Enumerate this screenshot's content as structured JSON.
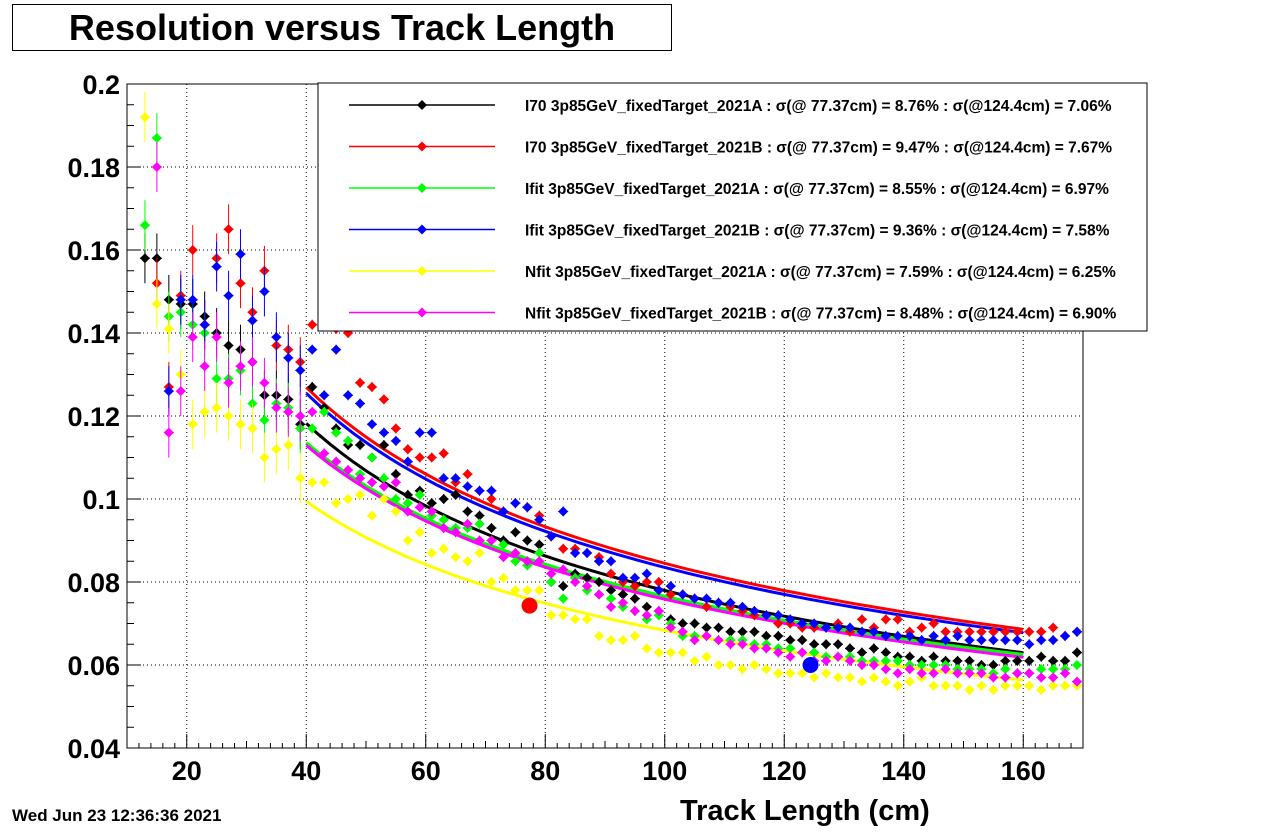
{
  "title": "Resolution versus Track Length",
  "timestamp": "Wed Jun 23 12:36:36 2021",
  "chart_data": {
    "type": "scatter",
    "title": "Resolution versus Track Length",
    "xlabel": "Track Length (cm)",
    "ylabel": "",
    "xlim": [
      10,
      170
    ],
    "ylim": [
      0.04,
      0.2
    ],
    "xticks": [
      20,
      40,
      60,
      80,
      100,
      120,
      140,
      160
    ],
    "yticks": [
      0.04,
      0.06,
      0.08,
      0.1,
      0.12,
      0.14,
      0.16,
      0.18,
      0.2
    ],
    "xtick_labels": [
      "20",
      "40",
      "60",
      "80",
      "100",
      "120",
      "140",
      "160"
    ],
    "ytick_labels": [
      "0.04",
      "0.06",
      "0.08",
      "0.1",
      "0.12",
      "0.14",
      "0.16",
      "0.18",
      "0.2"
    ],
    "grid": true,
    "legend_position": "top-right",
    "series": [
      {
        "name": "I70  3p85GeV_fixedTarget_2021A",
        "legend": "I70  3p85GeV_fixedTarget_2021A : σ(@ 77.37cm) =  8.76% : σ(@124.4cm) =  7.06%",
        "color": "#000000",
        "fit_a": 0.00977,
        "fit_b": 0.7,
        "x": [
          13,
          15,
          17,
          19,
          21,
          23,
          25,
          27,
          29,
          31,
          33,
          35,
          37,
          39,
          41,
          43,
          45,
          47,
          49,
          51,
          53,
          55,
          57,
          59,
          61,
          63,
          65,
          67,
          69,
          71,
          73,
          75,
          77,
          79,
          81,
          83,
          85,
          87,
          89,
          91,
          93,
          95,
          97,
          99,
          101,
          103,
          105,
          107,
          109,
          111,
          113,
          115,
          117,
          119,
          121,
          123,
          125,
          127,
          129,
          131,
          133,
          135,
          137,
          139,
          141,
          143,
          145,
          147,
          149,
          151,
          153,
          155,
          157,
          159,
          161,
          163,
          165,
          167,
          169
        ],
        "y": [
          0.158,
          0.158,
          0.148,
          0.147,
          0.147,
          0.144,
          0.14,
          0.137,
          0.136,
          0.133,
          0.125,
          0.125,
          0.124,
          0.118,
          0.127,
          0.122,
          0.117,
          0.113,
          0.113,
          0.11,
          0.113,
          0.106,
          0.101,
          0.102,
          0.099,
          0.1,
          0.101,
          0.097,
          0.096,
          0.093,
          0.09,
          0.092,
          0.09,
          0.089,
          0.08,
          0.079,
          0.082,
          0.081,
          0.08,
          0.078,
          0.077,
          0.076,
          0.074,
          0.073,
          0.071,
          0.07,
          0.07,
          0.069,
          0.069,
          0.068,
          0.068,
          0.068,
          0.067,
          0.067,
          0.066,
          0.066,
          0.065,
          0.065,
          0.065,
          0.064,
          0.063,
          0.064,
          0.063,
          0.062,
          0.062,
          0.061,
          0.062,
          0.061,
          0.061,
          0.061,
          0.06,
          0.06,
          0.061,
          0.061,
          0.061,
          0.062,
          0.061,
          0.061,
          0.063
        ]
      },
      {
        "name": "I70  3p85GeV_fixedTarget_2021B",
        "legend": "I70  3p85GeV_fixedTarget_2021B : σ(@ 77.37cm) =  9.47% : σ(@124.4cm) =  7.67%",
        "color": "#ff0000",
        "fit_a": 0.0104,
        "fit_b": 0.66,
        "x": [
          15,
          17,
          19,
          21,
          23,
          25,
          27,
          29,
          31,
          33,
          35,
          37,
          39,
          41,
          43,
          45,
          47,
          49,
          51,
          53,
          55,
          57,
          59,
          61,
          63,
          65,
          67,
          69,
          71,
          73,
          75,
          77,
          79,
          81,
          83,
          85,
          87,
          89,
          91,
          93,
          95,
          97,
          99,
          101,
          103,
          105,
          107,
          109,
          111,
          113,
          115,
          117,
          119,
          121,
          123,
          125,
          127,
          129,
          131,
          133,
          135,
          137,
          139,
          141,
          143,
          145,
          147,
          149,
          151,
          153,
          155,
          157,
          159,
          161,
          163,
          165,
          167,
          169
        ],
        "y": [
          0.152,
          0.127,
          0.149,
          0.16,
          0.142,
          0.158,
          0.165,
          0.152,
          0.145,
          0.155,
          0.137,
          0.136,
          0.133,
          0.142,
          0.143,
          0.141,
          0.14,
          0.128,
          0.127,
          0.124,
          0.117,
          0.112,
          0.11,
          0.11,
          0.111,
          0.104,
          0.106,
          0.102,
          0.1,
          0.097,
          0.099,
          0.098,
          0.096,
          0.091,
          0.088,
          0.088,
          0.087,
          0.086,
          0.082,
          0.08,
          0.079,
          0.08,
          0.08,
          0.077,
          0.077,
          0.076,
          0.074,
          0.075,
          0.074,
          0.073,
          0.072,
          0.072,
          0.07,
          0.07,
          0.069,
          0.069,
          0.069,
          0.07,
          0.068,
          0.071,
          0.069,
          0.071,
          0.071,
          0.068,
          0.069,
          0.07,
          0.068,
          0.068,
          0.068,
          0.068,
          0.068,
          0.068,
          0.068,
          0.068,
          0.068,
          0.069,
          0.067,
          0.068
        ]
      },
      {
        "name": "Ifit 3p85GeV_fixedTarget_2021A",
        "legend": "Ifit 3p85GeV_fixedTarget_2021A : σ(@ 77.37cm) =  8.55% : σ(@124.4cm) =  6.97%",
        "color": "#00ff00",
        "fit_a": 0.0086,
        "fit_b": 0.73,
        "x": [
          13,
          15,
          17,
          19,
          21,
          23,
          25,
          27,
          29,
          31,
          33,
          35,
          37,
          39,
          41,
          43,
          45,
          47,
          49,
          51,
          53,
          55,
          57,
          59,
          61,
          63,
          65,
          67,
          69,
          71,
          73,
          75,
          77,
          79,
          81,
          83,
          85,
          87,
          89,
          91,
          93,
          95,
          97,
          99,
          101,
          103,
          105,
          107,
          109,
          111,
          113,
          115,
          117,
          119,
          121,
          123,
          125,
          127,
          129,
          131,
          133,
          135,
          137,
          139,
          141,
          143,
          145,
          147,
          149,
          151,
          153,
          155,
          157,
          159,
          161,
          163,
          165,
          167,
          169
        ],
        "y": [
          0.166,
          0.187,
          0.144,
          0.145,
          0.142,
          0.14,
          0.129,
          0.129,
          0.131,
          0.123,
          0.119,
          0.123,
          0.122,
          0.117,
          0.117,
          0.121,
          0.116,
          0.114,
          0.106,
          0.11,
          0.105,
          0.1,
          0.099,
          0.101,
          0.096,
          0.095,
          0.093,
          0.093,
          0.094,
          0.09,
          0.089,
          0.085,
          0.084,
          0.087,
          0.08,
          0.076,
          0.081,
          0.078,
          0.077,
          0.076,
          0.074,
          0.073,
          0.071,
          0.072,
          0.07,
          0.067,
          0.067,
          0.067,
          0.066,
          0.066,
          0.066,
          0.065,
          0.065,
          0.064,
          0.064,
          0.063,
          0.063,
          0.062,
          0.062,
          0.062,
          0.061,
          0.061,
          0.061,
          0.061,
          0.06,
          0.06,
          0.06,
          0.06,
          0.059,
          0.059,
          0.059,
          0.058,
          0.059,
          0.058,
          0.058,
          0.059,
          0.059,
          0.059,
          0.06
        ]
      },
      {
        "name": "Ifit 3p85GeV_fixedTarget_2021B",
        "legend": "Ifit 3p85GeV_fixedTarget_2021B : σ(@ 77.37cm) =  9.36% : σ(@124.4cm) =  7.58%",
        "color": "#0000ff",
        "fit_a": 0.0102,
        "fit_b": 0.66,
        "x": [
          17,
          19,
          21,
          23,
          25,
          27,
          29,
          31,
          33,
          35,
          37,
          39,
          41,
          43,
          45,
          47,
          49,
          51,
          53,
          55,
          57,
          59,
          61,
          63,
          65,
          67,
          69,
          71,
          73,
          75,
          77,
          79,
          81,
          83,
          85,
          87,
          89,
          91,
          93,
          95,
          97,
          99,
          101,
          103,
          105,
          107,
          109,
          111,
          113,
          115,
          117,
          119,
          121,
          123,
          125,
          127,
          129,
          131,
          133,
          135,
          137,
          139,
          141,
          143,
          145,
          147,
          149,
          151,
          153,
          155,
          157,
          159,
          161,
          163,
          165,
          167,
          169
        ],
        "y": [
          0.126,
          0.148,
          0.148,
          0.142,
          0.156,
          0.149,
          0.159,
          0.143,
          0.15,
          0.139,
          0.134,
          0.131,
          0.136,
          0.125,
          0.136,
          0.125,
          0.123,
          0.118,
          0.116,
          0.114,
          0.109,
          0.116,
          0.116,
          0.105,
          0.105,
          0.103,
          0.102,
          0.102,
          0.097,
          0.099,
          0.098,
          0.095,
          0.091,
          0.097,
          0.087,
          0.087,
          0.085,
          0.085,
          0.081,
          0.081,
          0.082,
          0.078,
          0.079,
          0.077,
          0.076,
          0.076,
          0.075,
          0.075,
          0.074,
          0.073,
          0.072,
          0.072,
          0.071,
          0.07,
          0.07,
          0.069,
          0.069,
          0.069,
          0.068,
          0.068,
          0.067,
          0.067,
          0.067,
          0.066,
          0.067,
          0.066,
          0.067,
          0.066,
          0.066,
          0.066,
          0.066,
          0.066,
          0.065,
          0.066,
          0.066,
          0.067,
          0.068
        ]
      },
      {
        "name": "Nfit 3p85GeV_fixedTarget_2021A",
        "legend": "Nfit 3p85GeV_fixedTarget_2021A : σ(@ 77.37cm) =  7.59% : σ(@124.4cm) =  6.25%",
        "color": "#ffff00",
        "fit_a": 0.008,
        "fit_b": 0.7,
        "x": [
          13,
          15,
          17,
          19,
          21,
          23,
          25,
          27,
          29,
          31,
          33,
          35,
          37,
          39,
          41,
          43,
          45,
          47,
          49,
          51,
          53,
          55,
          57,
          59,
          61,
          63,
          65,
          67,
          69,
          71,
          73,
          75,
          77,
          79,
          81,
          83,
          85,
          87,
          89,
          91,
          93,
          95,
          97,
          99,
          101,
          103,
          105,
          107,
          109,
          111,
          113,
          115,
          117,
          119,
          121,
          123,
          125,
          127,
          129,
          131,
          133,
          135,
          137,
          139,
          141,
          143,
          145,
          147,
          149,
          151,
          153,
          155,
          157,
          159,
          161,
          163,
          165,
          167,
          169
        ],
        "y": [
          0.192,
          0.147,
          0.141,
          0.13,
          0.118,
          0.121,
          0.122,
          0.12,
          0.118,
          0.117,
          0.11,
          0.112,
          0.113,
          0.105,
          0.104,
          0.104,
          0.099,
          0.1,
          0.101,
          0.096,
          0.1,
          0.097,
          0.09,
          0.092,
          0.087,
          0.088,
          0.086,
          0.085,
          0.087,
          0.08,
          0.081,
          0.078,
          0.078,
          0.078,
          0.072,
          0.072,
          0.071,
          0.071,
          0.067,
          0.066,
          0.066,
          0.067,
          0.064,
          0.063,
          0.063,
          0.063,
          0.061,
          0.062,
          0.06,
          0.06,
          0.059,
          0.06,
          0.059,
          0.058,
          0.058,
          0.058,
          0.057,
          0.058,
          0.057,
          0.057,
          0.056,
          0.057,
          0.056,
          0.055,
          0.056,
          0.057,
          0.055,
          0.055,
          0.055,
          0.054,
          0.055,
          0.054,
          0.055,
          0.055,
          0.055,
          0.054,
          0.055,
          0.055,
          0.055
        ]
      },
      {
        "name": "Nfit 3p85GeV_fixedTarget_2021B",
        "legend": "Nfit 3p85GeV_fixedTarget_2021B : σ(@ 77.37cm) =  8.48% : σ(@124.4cm) =  6.90%",
        "color": "#ff00ff",
        "fit_a": 0.0085,
        "fit_b": 0.73,
        "x": [
          15,
          17,
          19,
          21,
          23,
          25,
          27,
          29,
          31,
          33,
          35,
          37,
          39,
          41,
          43,
          45,
          47,
          49,
          51,
          53,
          55,
          57,
          59,
          61,
          63,
          65,
          67,
          69,
          71,
          73,
          75,
          77,
          79,
          81,
          83,
          85,
          87,
          89,
          91,
          93,
          95,
          97,
          99,
          101,
          103,
          105,
          107,
          109,
          111,
          113,
          115,
          117,
          119,
          121,
          123,
          125,
          127,
          129,
          131,
          133,
          135,
          137,
          139,
          141,
          143,
          145,
          147,
          149,
          151,
          153,
          155,
          157,
          159,
          161,
          163,
          165,
          167,
          169
        ],
        "y": [
          0.18,
          0.116,
          0.126,
          0.139,
          0.132,
          0.139,
          0.128,
          0.132,
          0.133,
          0.128,
          0.122,
          0.121,
          0.12,
          0.121,
          0.111,
          0.109,
          0.107,
          0.105,
          0.104,
          0.103,
          0.104,
          0.097,
          0.098,
          0.097,
          0.093,
          0.092,
          0.094,
          0.09,
          0.09,
          0.086,
          0.087,
          0.085,
          0.085,
          0.082,
          0.083,
          0.08,
          0.079,
          0.077,
          0.074,
          0.075,
          0.073,
          0.072,
          0.073,
          0.069,
          0.068,
          0.066,
          0.067,
          0.066,
          0.065,
          0.065,
          0.064,
          0.064,
          0.063,
          0.062,
          0.063,
          0.061,
          0.061,
          0.062,
          0.061,
          0.06,
          0.06,
          0.059,
          0.058,
          0.059,
          0.058,
          0.058,
          0.059,
          0.058,
          0.058,
          0.058,
          0.057,
          0.057,
          0.058,
          0.058,
          0.057,
          0.057,
          0.058,
          0.056
        ]
      }
    ],
    "highlights": [
      {
        "x": 77.37,
        "y": 0.0743,
        "color": "#ff0000"
      },
      {
        "x": 124.4,
        "y": 0.06,
        "color": "#0000ff"
      }
    ]
  }
}
